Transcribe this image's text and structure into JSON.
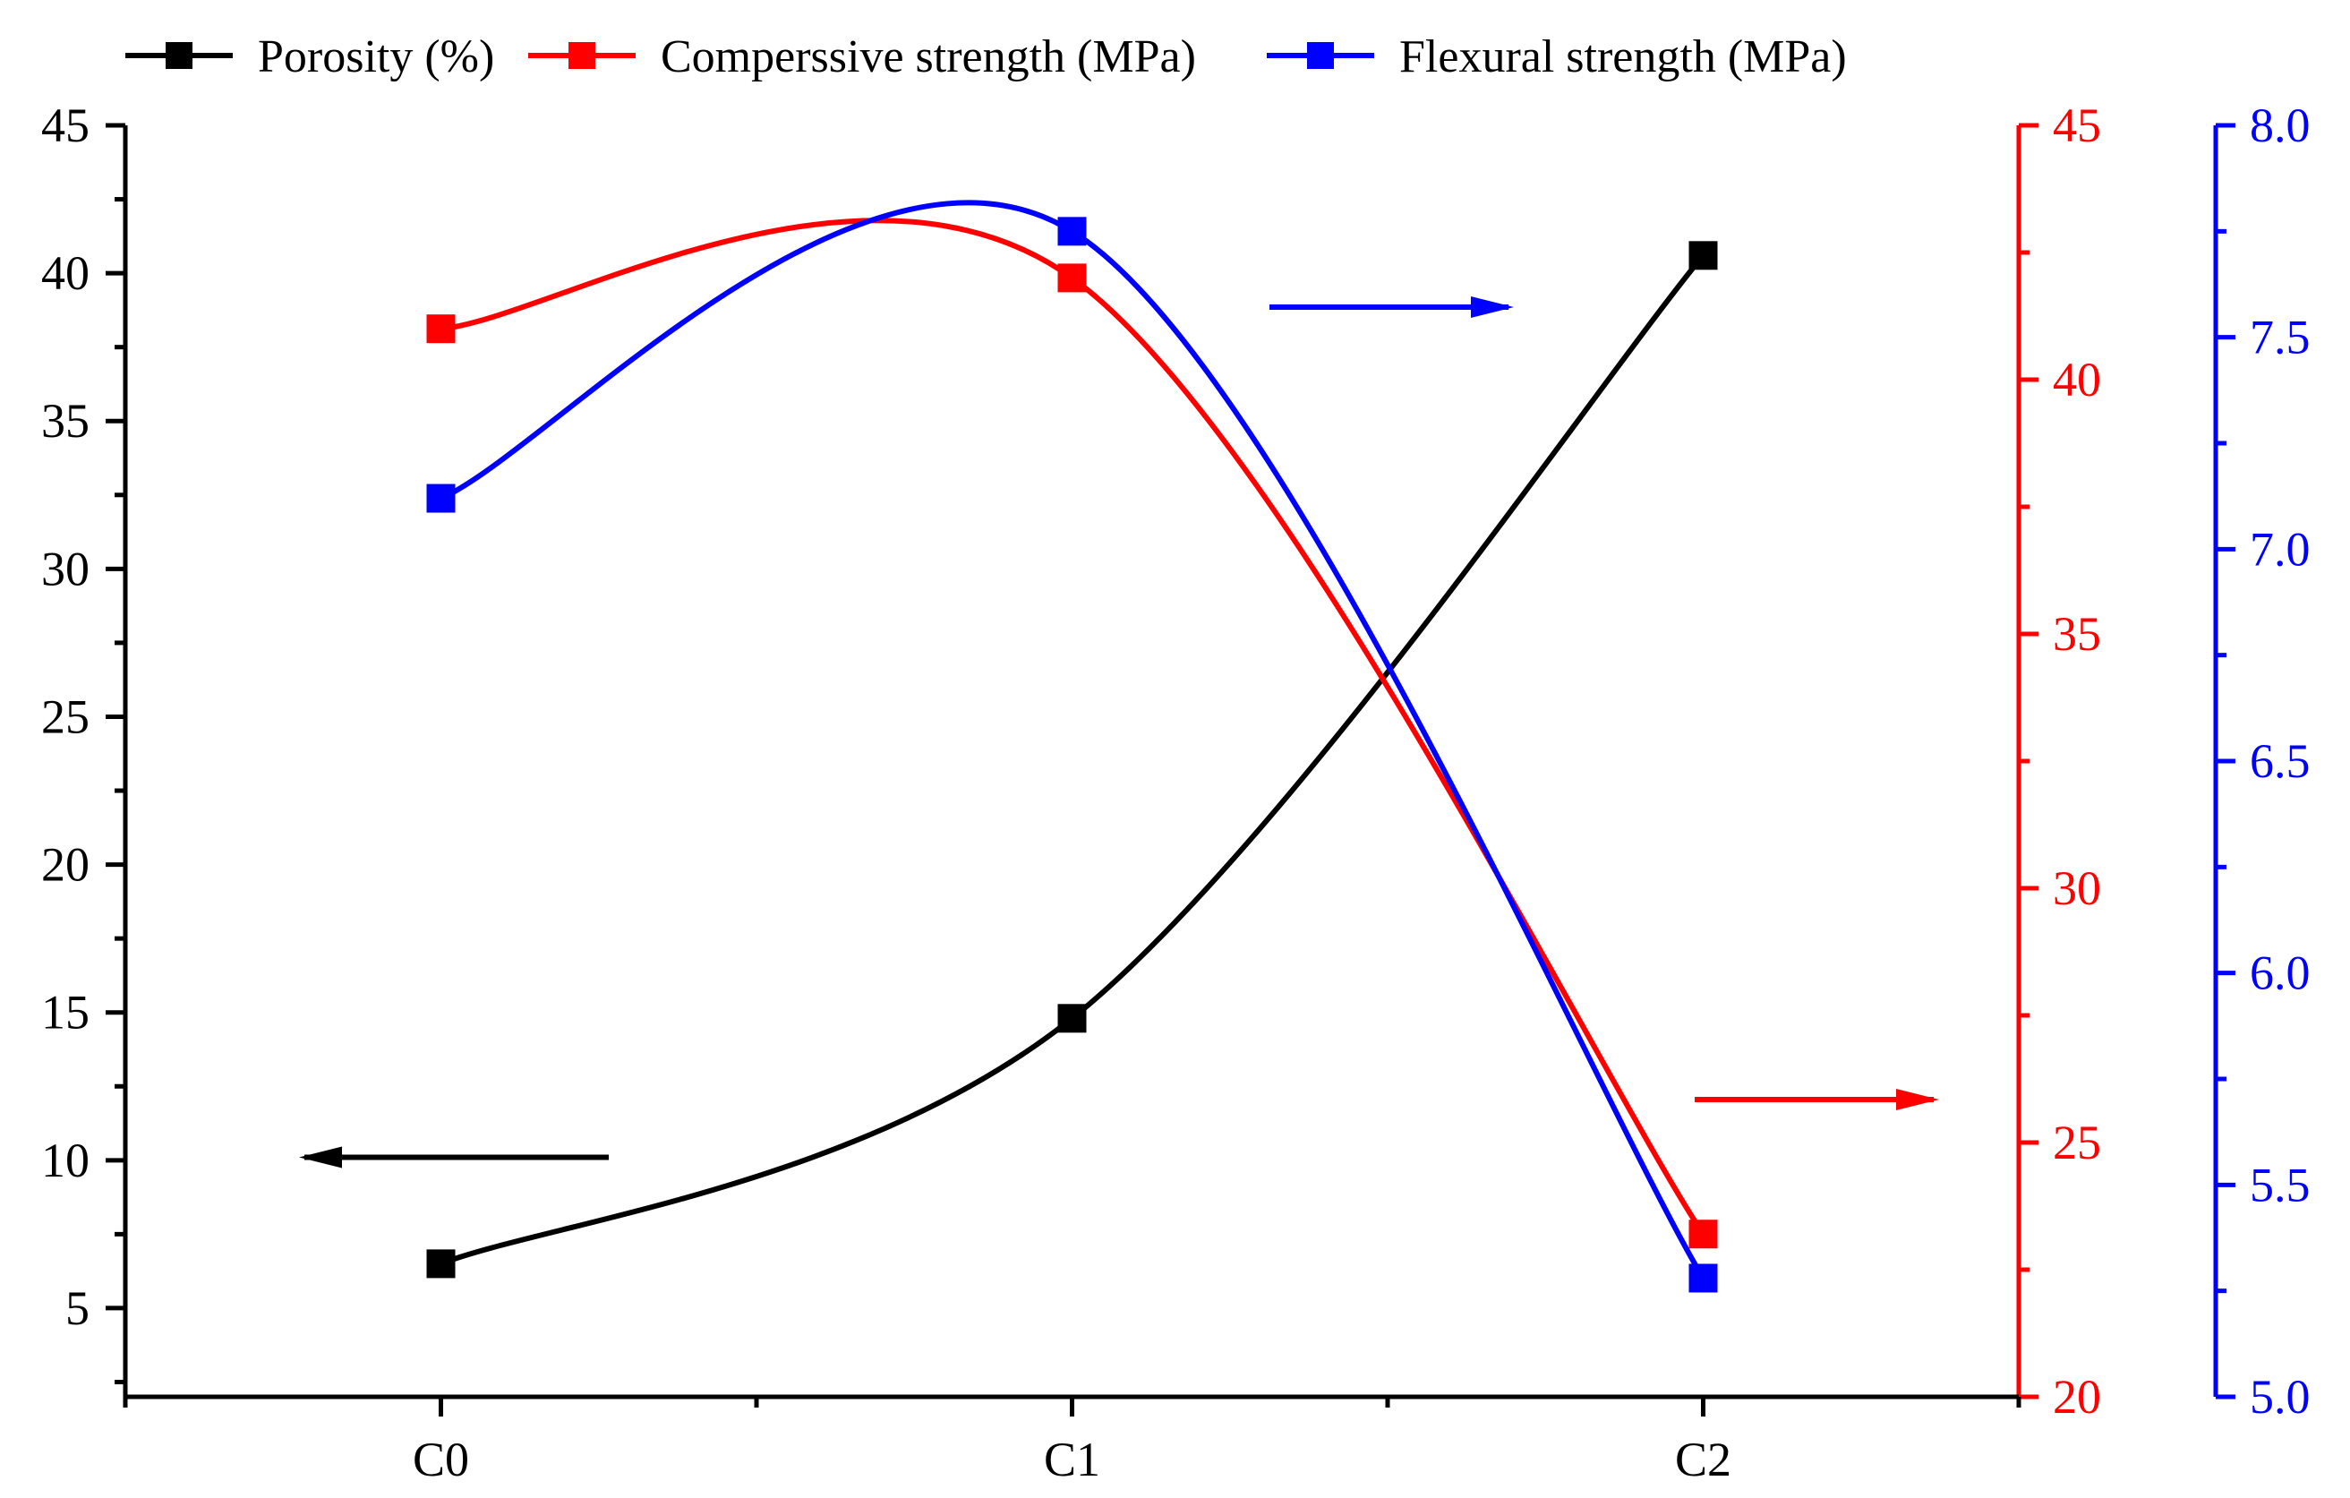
{
  "chart_data": {
    "type": "line",
    "title": "",
    "xlabel": "",
    "categories": [
      "C0",
      "C1",
      "C2"
    ],
    "x_minor_ticks": true,
    "grid": false,
    "legend_position": "top-left",
    "series": [
      {
        "name": "Porosity (%)",
        "axis": "left",
        "color": "#000000",
        "values": [
          6.5,
          14.8,
          40.6
        ],
        "marker": "square",
        "smooth": true
      },
      {
        "name": "Comperssive strength (MPa)",
        "axis": "right",
        "color": "#ff0000",
        "values": [
          41.0,
          42.0,
          23.2
        ],
        "marker": "square",
        "smooth": true
      },
      {
        "name": "Flexural strength (MPa)",
        "axis": "right2",
        "color": "#0000ff",
        "values": [
          7.12,
          7.75,
          5.28
        ],
        "marker": "square",
        "smooth": true
      }
    ],
    "axes": {
      "left": {
        "ylim": [
          2.0,
          45.0
        ],
        "ticks": [
          5,
          10,
          15,
          20,
          25,
          30,
          35,
          40,
          45
        ],
        "tick_labels": [
          "5",
          "10",
          "15",
          "20",
          "25",
          "30",
          "35",
          "40",
          "45"
        ],
        "color": "#000000",
        "ylabel": ""
      },
      "right": {
        "ylim": [
          20,
          45
        ],
        "ticks": [
          20,
          25,
          30,
          35,
          40,
          45
        ],
        "tick_labels": [
          "20",
          "25",
          "30",
          "35",
          "40",
          "45"
        ],
        "color": "#ff0000",
        "ylabel": ""
      },
      "right2": {
        "ylim": [
          5.0,
          8.0
        ],
        "ticks": [
          5.0,
          5.5,
          6.0,
          6.5,
          7.0,
          7.5,
          8.0
        ],
        "tick_labels": [
          "5.0",
          "5.5",
          "6.0",
          "6.5",
          "7.0",
          "7.5",
          "8.0"
        ],
        "color": "#0000ff",
        "ylabel": ""
      }
    },
    "annotations": [
      {
        "type": "arrow",
        "direction": "left",
        "color": "#000000",
        "meaning": "porosity uses left axis"
      },
      {
        "type": "arrow",
        "direction": "right",
        "color": "#0000ff",
        "meaning": "flexural strength uses outer right axis"
      },
      {
        "type": "arrow",
        "direction": "right",
        "color": "#ff0000",
        "meaning": "compressive strength uses inner right axis"
      }
    ]
  }
}
